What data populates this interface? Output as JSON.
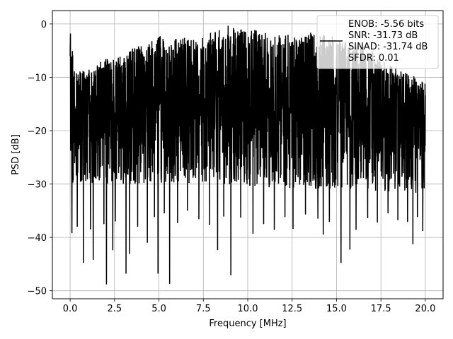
{
  "chart_data": {
    "type": "line",
    "xlabel": "Frequency [MHz]",
    "ylabel": "PSD [dB]",
    "xlim": [
      -1.0,
      21.0
    ],
    "ylim": [
      -51.5,
      2.5
    ],
    "xticks": [
      0.0,
      2.5,
      5.0,
      7.5,
      10.0,
      12.5,
      15.0,
      17.5,
      20.0
    ],
    "xtick_labels": [
      "0.0",
      "2.5",
      "5.0",
      "7.5",
      "10.0",
      "12.5",
      "15.0",
      "17.5",
      "20.0"
    ],
    "yticks": [
      0,
      -10,
      -20,
      -30,
      -40,
      -50
    ],
    "ytick_labels": [
      "0",
      "−10",
      "−20",
      "−30",
      "−40",
      "−50"
    ],
    "grid": true,
    "legend_position": "top-right",
    "series": [
      {
        "name": "ENOB: -5.56 bits\nSNR: -31.73 dB\nSINAD: -31.74 dB\nSFDR: 0.01",
        "color": "#000000",
        "x_range": [
          0.0,
          20.0
        ],
        "num_points": 2200,
        "upper_envelope": [
          [
            0.0,
            -1.8
          ],
          [
            0.25,
            -8
          ],
          [
            0.5,
            -9
          ],
          [
            1.0,
            -8
          ],
          [
            1.5,
            -7.5
          ],
          [
            2.0,
            -6.5
          ],
          [
            2.5,
            -6.5
          ],
          [
            3.0,
            -5.5
          ],
          [
            3.5,
            -4.5
          ],
          [
            4.0,
            -4
          ],
          [
            4.5,
            -3.5
          ],
          [
            5.0,
            -2
          ],
          [
            5.5,
            -3
          ],
          [
            6.0,
            -2.5
          ],
          [
            6.5,
            -2.5
          ],
          [
            7.0,
            -2.5
          ],
          [
            7.5,
            -2
          ],
          [
            8.0,
            -1.5
          ],
          [
            8.5,
            -1
          ],
          [
            8.9,
            0
          ],
          [
            9.5,
            -0.5
          ],
          [
            10.0,
            -1
          ],
          [
            10.5,
            -1
          ],
          [
            11.0,
            -1.5
          ],
          [
            11.5,
            -2
          ],
          [
            12.0,
            -2
          ],
          [
            12.5,
            -2
          ],
          [
            13.0,
            -2.5
          ],
          [
            13.5,
            -1.5
          ],
          [
            14.0,
            -2
          ],
          [
            14.5,
            -2
          ],
          [
            15.0,
            -2.5
          ],
          [
            15.5,
            -3
          ],
          [
            16.0,
            -4
          ],
          [
            16.5,
            -4
          ],
          [
            17.0,
            -5
          ],
          [
            17.5,
            -6
          ],
          [
            18.0,
            -7.5
          ],
          [
            18.5,
            -8.5
          ],
          [
            19.0,
            -9
          ],
          [
            19.5,
            -10
          ],
          [
            20.0,
            -11
          ]
        ],
        "median_envelope": [
          [
            0.0,
            -17
          ],
          [
            2.0,
            -16
          ],
          [
            5.0,
            -15
          ],
          [
            8.5,
            -14
          ],
          [
            12.0,
            -14.5
          ],
          [
            16.0,
            -16
          ],
          [
            20.0,
            -18
          ]
        ],
        "floor_envelope": [
          [
            0.0,
            -30
          ],
          [
            4.0,
            -30
          ],
          [
            8.0,
            -30
          ],
          [
            12.0,
            -31
          ],
          [
            16.0,
            -31
          ],
          [
            20.0,
            -32
          ]
        ],
        "deep_dips": [
          [
            0.1,
            -39.2
          ],
          [
            0.4,
            -38
          ],
          [
            0.75,
            -44.8
          ],
          [
            1.15,
            -38.5
          ],
          [
            1.3,
            -44.2
          ],
          [
            1.9,
            -37.5
          ],
          [
            2.05,
            -48.8
          ],
          [
            2.4,
            -42.4
          ],
          [
            2.55,
            -37
          ],
          [
            3.15,
            -46.8
          ],
          [
            3.35,
            -43.1
          ],
          [
            3.8,
            -38
          ],
          [
            4.35,
            -41
          ],
          [
            4.75,
            -36.2
          ],
          [
            4.95,
            -46.8
          ],
          [
            5.3,
            -35.5
          ],
          [
            5.6,
            -48.7
          ],
          [
            6.05,
            -37.3
          ],
          [
            6.6,
            -35
          ],
          [
            7.25,
            -36.6
          ],
          [
            7.85,
            -37.7
          ],
          [
            8.3,
            -42.4
          ],
          [
            8.65,
            -36.1
          ],
          [
            9.05,
            -47.1
          ],
          [
            9.6,
            -36.3
          ],
          [
            10.3,
            -39.3
          ],
          [
            10.9,
            -37.5
          ],
          [
            11.5,
            -38.6
          ],
          [
            12.1,
            -36.2
          ],
          [
            12.55,
            -38.4
          ],
          [
            13.25,
            -35.7
          ],
          [
            13.95,
            -36.5
          ],
          [
            14.25,
            -39.5
          ],
          [
            14.6,
            -37.1
          ],
          [
            15.25,
            -44.8
          ],
          [
            15.75,
            -42.3
          ],
          [
            16.1,
            -38.6
          ],
          [
            16.75,
            -36.4
          ],
          [
            17.3,
            -37.2
          ],
          [
            17.9,
            -35.5
          ],
          [
            18.45,
            -36.8
          ],
          [
            19.0,
            -37.1
          ],
          [
            19.3,
            -41.3
          ],
          [
            19.55,
            -36.2
          ],
          [
            19.85,
            -38.8
          ]
        ],
        "seed": 20240611
      }
    ]
  }
}
